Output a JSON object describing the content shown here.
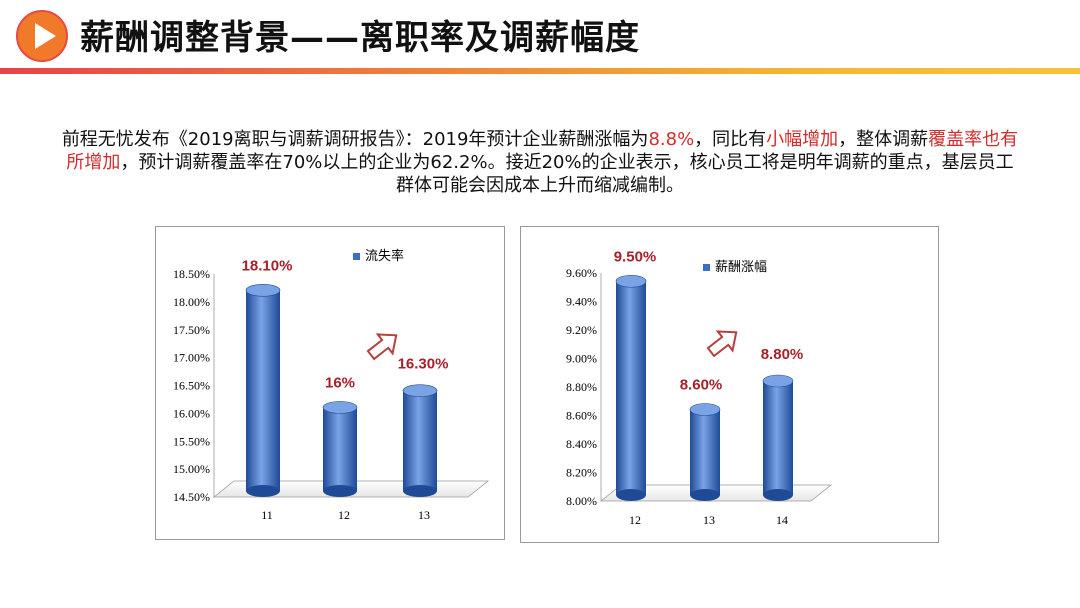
{
  "header": {
    "title": "薪酬调整背景——离职率及调薪幅度"
  },
  "intro": {
    "p1": "前程无忧发布《2019离职与调薪调研报告》：2019年预计企业薪酬涨幅为",
    "hl1": "8.8%",
    "p2": "，同比有",
    "hl2": "小幅增加",
    "p3": "，整体调薪",
    "hl3": "覆盖率也有所增加",
    "p4": "，预计调薪覆盖率在70%以上的企业为62.2%。接近20%的企业表示，核心员工将是明年调薪的重点，基层员工群体可能会因成本上升而缩减编制。"
  },
  "colors": {
    "bar": "#3a6fc4",
    "bar_dark": "#1f4a96",
    "bar_light": "#7aa3e6",
    "data_label": "#a8202a",
    "arrow": "#b5413c",
    "title_gradient_start": "#e8424a",
    "title_gradient_end": "#f7c23a"
  },
  "chart_data": [
    {
      "type": "bar",
      "categories": [
        "11",
        "12",
        "13"
      ],
      "series": [
        {
          "name": "流失率",
          "values": [
            18.1,
            16.0,
            16.3
          ]
        }
      ],
      "data_labels": [
        "18.10%",
        "16%",
        "16.30%"
      ],
      "y_ticks": [
        "14.50%",
        "15.00%",
        "15.50%",
        "16.00%",
        "16.50%",
        "17.00%",
        "17.50%",
        "18.00%",
        "18.50%"
      ],
      "ylim": [
        14.5,
        18.5
      ],
      "legend": "top-right",
      "grid": false,
      "title": "",
      "xlabel": "",
      "ylabel": ""
    },
    {
      "type": "bar",
      "categories": [
        "12",
        "13",
        "14"
      ],
      "series": [
        {
          "name": "薪酬涨幅",
          "values": [
            9.5,
            8.6,
            8.8
          ]
        }
      ],
      "data_labels": [
        "9.50%",
        "8.60%",
        "8.80%"
      ],
      "y_ticks": [
        "8.00%",
        "8.20%",
        "8.40%",
        "8.60%",
        "8.80%",
        "9.00%",
        "9.20%",
        "9.40%",
        "9.60%"
      ],
      "ylim": [
        8.0,
        9.6
      ],
      "legend": "top-right",
      "grid": false,
      "title": "",
      "xlabel": "",
      "ylabel": ""
    }
  ]
}
